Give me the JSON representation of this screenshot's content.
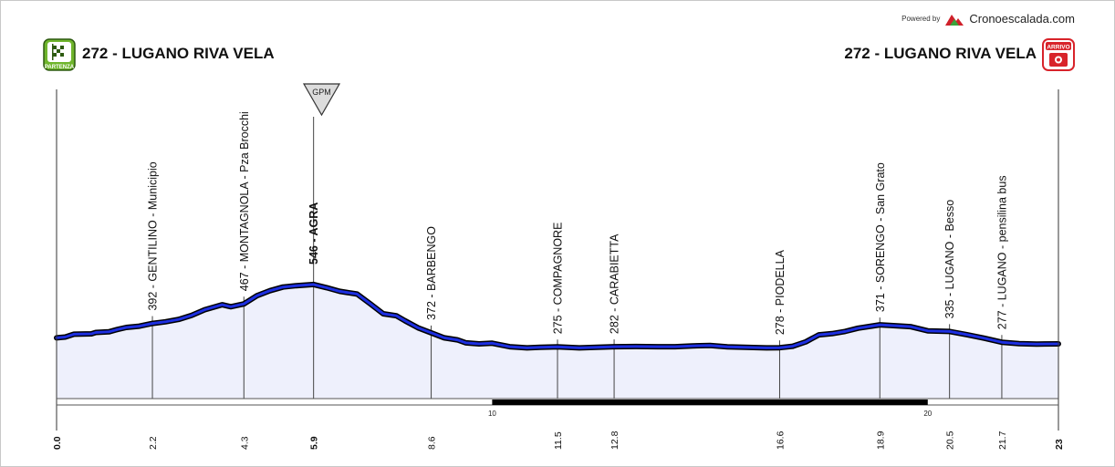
{
  "header": {
    "powered_by": "Powered by",
    "brand": "Cronoescalada.com",
    "start_title": "272 - LUGANO RIVA VELA",
    "end_title": "272 - LUGANO RIVA VELA",
    "start_badge": "PARTENZA",
    "end_badge": "ARRIVO",
    "gpm_label": "GPM"
  },
  "chart_data": {
    "type": "area",
    "title": "",
    "xlabel": "",
    "ylabel": "",
    "x_unit": "km",
    "xlim": [
      0,
      23
    ],
    "km_scale_marks": [
      10,
      20
    ],
    "profile": {
      "x": [
        0.0,
        0.2,
        0.4,
        0.8,
        0.9,
        1.2,
        1.4,
        1.6,
        1.9,
        2.2,
        2.5,
        2.8,
        3.1,
        3.4,
        3.8,
        4.0,
        4.3,
        4.6,
        4.9,
        5.2,
        5.5,
        5.9,
        6.2,
        6.5,
        6.9,
        7.2,
        7.5,
        7.8,
        8.0,
        8.3,
        8.6,
        8.9,
        9.2,
        9.4,
        9.7,
        10.0,
        10.4,
        10.8,
        11.1,
        11.5,
        12.0,
        12.4,
        12.8,
        13.3,
        13.8,
        14.2,
        14.6,
        15.0,
        15.4,
        15.8,
        16.3,
        16.6,
        16.9,
        17.2,
        17.5,
        17.8,
        18.1,
        18.4,
        18.7,
        18.9,
        19.3,
        19.6,
        20.0,
        20.5,
        20.9,
        21.3,
        21.7,
        22.1,
        22.5,
        23.0
      ],
      "y": [
        180,
        184,
        198,
        200,
        207,
        210,
        222,
        232,
        238,
        252,
        260,
        272,
        292,
        320,
        345,
        335,
        349,
        390,
        415,
        433,
        440,
        446,
        430,
        412,
        398,
        350,
        300,
        290,
        265,
        230,
        205,
        180,
        170,
        155,
        150,
        153,
        136,
        130,
        133,
        135,
        130,
        133,
        136,
        137,
        136,
        136,
        140,
        142,
        135,
        133,
        130,
        131,
        138,
        160,
        195,
        201,
        212,
        228,
        238,
        245,
        240,
        236,
        215,
        212,
        196,
        178,
        158,
        151,
        149,
        150
      ]
    },
    "waypoints": [
      {
        "km": "2.2",
        "label": "392 - GENTILINO - Municipio"
      },
      {
        "km": "4.3",
        "label": "467 - MONTAGNOLA - Pza Brocchi"
      },
      {
        "km": "5.9",
        "label": "546 - AGRA",
        "summit": true
      },
      {
        "km": "8.6",
        "label": "372 - BARBENGO"
      },
      {
        "km": "11.5",
        "label": "275 - COMPAGNORE"
      },
      {
        "km": "12.8",
        "label": "282 - CARABIETTA"
      },
      {
        "km": "16.6",
        "label": "278 - PIODELLA"
      },
      {
        "km": "18.9",
        "label": "371 - SORENGO - San Grato"
      },
      {
        "km": "20.5",
        "label": "335 - LUGANO - Besso"
      },
      {
        "km": "21.7",
        "label": "277 - LUGANO - pensilina bus"
      }
    ],
    "start_km": "0.0",
    "end_km": "23",
    "colors": {
      "fill": "#eef0fc",
      "line_outer": "#000000",
      "line_inner": "#1d2fe0",
      "guide": "#444444",
      "scale_bar": "#000000",
      "badge_start": "#6fb52c",
      "badge_end": "#d8232a",
      "brand_mountain": "#d0202a",
      "brand_mountain_2": "#3aa23a"
    }
  }
}
